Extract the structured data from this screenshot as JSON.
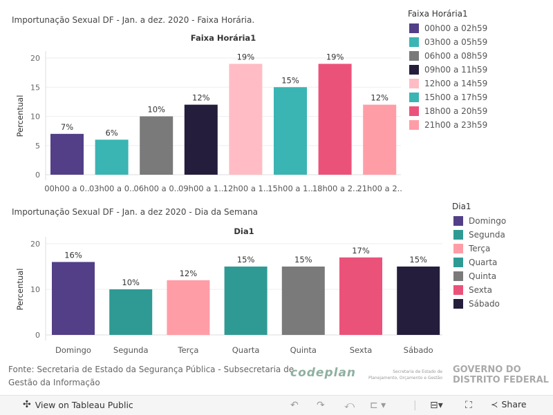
{
  "chart_data": [
    {
      "type": "bar",
      "title": "Importunação Sexual DF - Jan. a dez. 2020 - Faixa Horária.",
      "subtitle": "Faixa Horária1",
      "ylabel": "Percentual",
      "ylim": [
        0,
        20
      ],
      "yticks": [
        0,
        5,
        10,
        15,
        20
      ],
      "grid": true,
      "categories": [
        "00h00 a 0..",
        "03h00 a 0..",
        "06h00 a 0..",
        "09h00 a 1..",
        "12h00 a 1..",
        "15h00 a 1..",
        "18h00 a 2..",
        "21h00 a 2.."
      ],
      "values": [
        7,
        6,
        10,
        12,
        19,
        15,
        19,
        12
      ],
      "data_labels": [
        "7%",
        "6%",
        "10%",
        "12%",
        "19%",
        "15%",
        "19%",
        "12%"
      ],
      "colors": [
        "#523f87",
        "#3bb4b4",
        "#7a7a7a",
        "#241d3b",
        "#ffbcc5",
        "#3bb4b4",
        "#eb527a",
        "#ff9da7"
      ],
      "legend": {
        "title": "Faixa Horária1",
        "position": "right",
        "entries": [
          "00h00 a 02h59",
          "03h00 a 05h59",
          "06h00 a 08h59",
          "09h00 a 11h59",
          "12h00 a 14h59",
          "15h00 a 17h59",
          "18h00 a 20h59",
          "21h00 a 23h59"
        ]
      }
    },
    {
      "type": "bar",
      "title": "Importunação Sexual DF - Jan. a dez 2020 - Dia da Semana",
      "subtitle": "Dia1",
      "ylabel": "Percentual",
      "ylim": [
        0,
        20
      ],
      "yticks": [
        0,
        10,
        20
      ],
      "grid": true,
      "categories": [
        "Domingo",
        "Segunda",
        "Terça",
        "Quarta",
        "Quinta",
        "Sexta",
        "Sábado"
      ],
      "values": [
        16,
        10,
        12,
        15,
        15,
        17,
        15
      ],
      "data_labels": [
        "16%",
        "10%",
        "12%",
        "15%",
        "15%",
        "17%",
        "15%"
      ],
      "colors": [
        "#523f87",
        "#2f9a94",
        "#ff9da7",
        "#2f9a94",
        "#7a7a7a",
        "#eb527a",
        "#241d3b"
      ],
      "legend": {
        "title": "Dia1",
        "position": "right",
        "entries": [
          "Domingo",
          "Segunda",
          "Terça",
          "Quarta",
          "Quinta",
          "Sexta",
          "Sábado"
        ]
      }
    }
  ],
  "footer": {
    "source_line1": "Fonte: Secretaria de Estado da Segurança Pública - Subsecretaria de",
    "source_line2": "Gestão da Informação",
    "logo_codeplan": "codeplan",
    "logo_secretaria": "Secretaria de Estado de Planejamento, Orçamento e Gestão",
    "logo_gdf_1": "GOVERNO DO",
    "logo_gdf_2": "DISTRITO FEDERAL"
  },
  "toolbar": {
    "view_label": "View on Tableau Public",
    "share_label": "Share"
  }
}
